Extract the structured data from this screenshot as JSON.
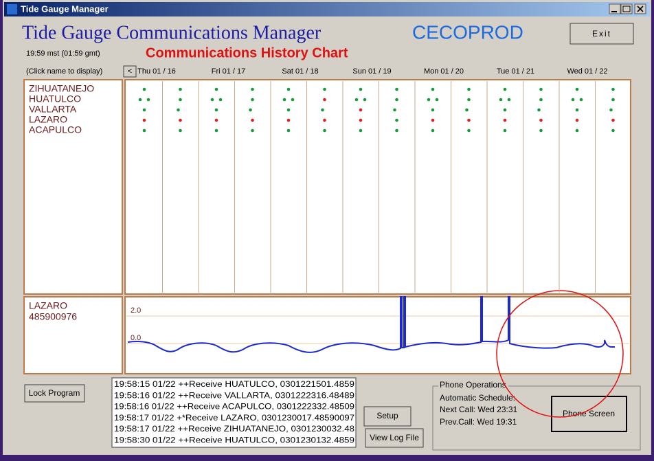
{
  "window": {
    "title": "Tide Gauge Manager"
  },
  "header": {
    "title": "Tide Gauge Communications Manager",
    "org": "CECOPROD",
    "exit": "Exit",
    "time": "19:59 mst (01:59 gmt)",
    "subtitle": "Communications History Chart",
    "hint": "(Click name to display)",
    "prev": "<"
  },
  "dates": [
    "Thu 01 / 16",
    "Fri 01 / 17",
    "Sat 01 / 18",
    "Sun 01 / 19",
    "Mon 01 / 20",
    "Tue 01 / 21",
    "Wed 01 / 22"
  ],
  "stations": [
    "ZIHUATANEJO",
    "HUATULCO",
    "VALLARTA",
    "LAZARO",
    "ACAPULCO"
  ],
  "detail": {
    "station": "LAZARO",
    "id": "485900976",
    "ylim": [
      -2.2,
      3.4
    ],
    "yticks": [
      {
        "value": 2,
        "label": "2.0"
      },
      {
        "value": 0,
        "label": "0.0"
      }
    ]
  },
  "buttons": {
    "lock": "Lock Program",
    "setup": "Setup",
    "view_log": "View Log File",
    "phone_screen": "Phone Screen"
  },
  "log": [
    "19:58:15 01/22  ++Receive  HUATULCO, 0301221501.4859",
    "19:58:16 01/22  ++Receive  VALLARTA, 0301222316.48489",
    "19:58:16 01/22  ++Receive  ACAPULCO, 0301222332.48509",
    "19:58:17 01/22  +*Receive  LAZARO, 0301230017.48590097",
    "19:58:17 01/22  ++Receive  ZIHUATANEJO, 0301230032.48",
    "19:58:30 01/22  ++Receive  HUATULCO, 0301230132.4859"
  ],
  "phone": {
    "title": "Phone Operations",
    "schedule": "Automatic Schedule:",
    "next": "Next Call:  Wed  23:31",
    "prev": "Prev.Call:  Wed  19:31"
  }
}
